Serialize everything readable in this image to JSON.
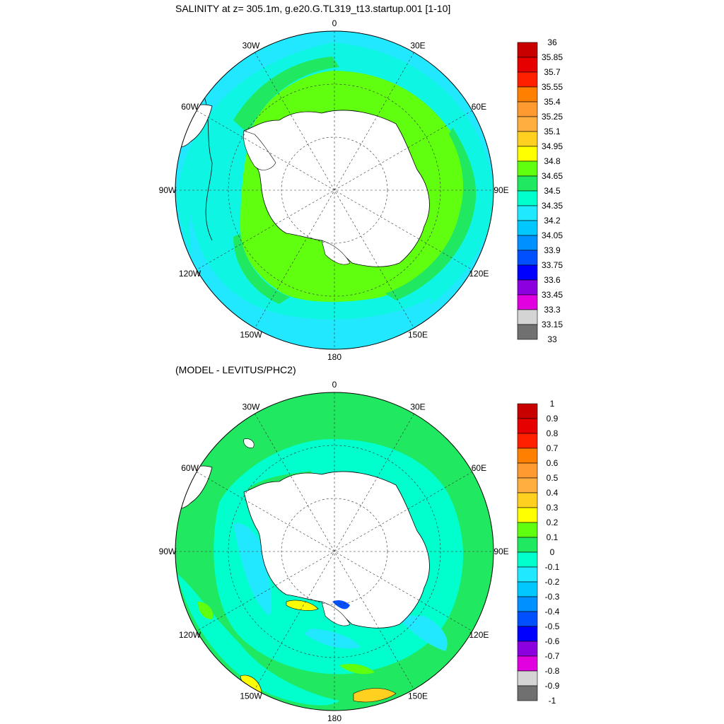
{
  "panels": [
    {
      "id": "salinity",
      "title": "SALINITY at z= 305.1m, g.e20.G.TL319_t13.startup.001 [1-10]",
      "longitude_labels": [
        "0",
        "30E",
        "60E",
        "90E",
        "120E",
        "150E",
        "180",
        "150W",
        "120W",
        "90W",
        "60W",
        "30W"
      ],
      "colorbar_labels": [
        "36",
        "35.85",
        "35.7",
        "35.55",
        "35.4",
        "35.25",
        "35.1",
        "34.95",
        "34.8",
        "34.65",
        "34.5",
        "34.35",
        "34.2",
        "34.05",
        "33.9",
        "33.75",
        "33.6",
        "33.45",
        "33.3",
        "33.15",
        "33"
      ],
      "colorbar_colors": [
        "#c80000",
        "#e60000",
        "#ff2000",
        "#ff8000",
        "#ff9a30",
        "#ffae40",
        "#ffd020",
        "#ffff00",
        "#60ff10",
        "#20e860",
        "#00ffcc",
        "#20e8ff",
        "#00c8ff",
        "#0090ff",
        "#0050ff",
        "#0000ff",
        "#8c00e0",
        "#e000e0",
        "#d4d4d4",
        "#707070"
      ]
    },
    {
      "id": "anomaly",
      "title": "(MODEL - LEVITUS/PHC2)",
      "longitude_labels": [
        "0",
        "30E",
        "60E",
        "90E",
        "120E",
        "150E",
        "180",
        "150W",
        "120W",
        "90W",
        "60W",
        "30W"
      ],
      "colorbar_labels": [
        "1",
        "0.9",
        "0.8",
        "0.7",
        "0.6",
        "0.5",
        "0.4",
        "0.3",
        "0.2",
        "0.1",
        "0",
        "-0.1",
        "-0.2",
        "-0.3",
        "-0.4",
        "-0.5",
        "-0.6",
        "-0.7",
        "-0.8",
        "-0.9",
        "-1"
      ],
      "colorbar_colors": [
        "#c80000",
        "#e60000",
        "#ff2000",
        "#ff8000",
        "#ff9a30",
        "#ffae40",
        "#ffd020",
        "#ffff00",
        "#60ff10",
        "#20e860",
        "#00ffcc",
        "#20e8ff",
        "#00c8ff",
        "#0090ff",
        "#0050ff",
        "#0000ff",
        "#8c00e0",
        "#e000e0",
        "#d4d4d4",
        "#707070"
      ]
    }
  ]
}
